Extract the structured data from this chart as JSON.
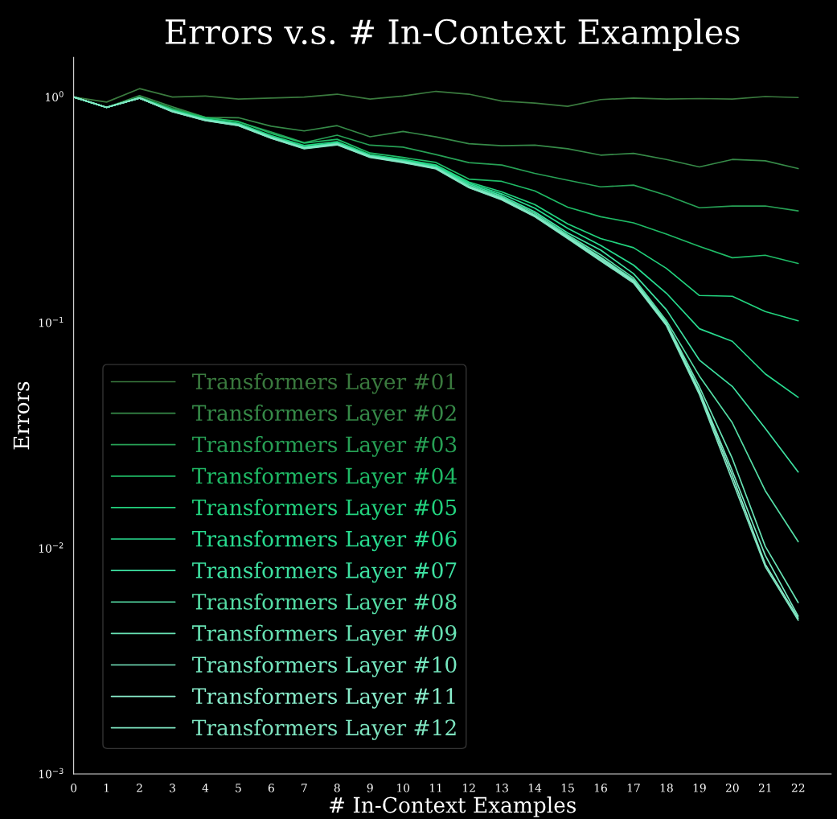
{
  "chart_data": {
    "type": "line",
    "title": "Errors v.s. # In-Context Examples",
    "xlabel": "# In-Context Examples",
    "ylabel": "Errors",
    "x": [
      0,
      1,
      2,
      3,
      4,
      5,
      6,
      7,
      8,
      9,
      10,
      11,
      12,
      13,
      14,
      15,
      16,
      17,
      18,
      19,
      20,
      21,
      22
    ],
    "xlim": [
      0,
      23
    ],
    "xticks": [
      0,
      1,
      2,
      3,
      4,
      5,
      6,
      7,
      8,
      9,
      10,
      11,
      12,
      13,
      14,
      15,
      16,
      17,
      18,
      19,
      20,
      21,
      22
    ],
    "log": "y",
    "ylim": [
      0.001,
      1.5
    ],
    "yticks": [
      {
        "value": 0.001,
        "label": "10$^{−3}$"
      },
      {
        "value": 0.01,
        "label": "10$^{−2}$"
      },
      {
        "value": 0.1,
        "label": "10$^{−1}$"
      },
      {
        "value": 1,
        "label": "10$^{0}$"
      }
    ],
    "grid": false,
    "legend": "bottom left",
    "marker": "none",
    "line_style": "solid",
    "series": [
      {
        "name": "Transformers Layer #01",
        "color": "#3a7a3e",
        "values": [
          1.0,
          0.95,
          1.09,
          1.0,
          1.01,
          0.98,
          0.99,
          1.0,
          1.03,
          0.98,
          1.01,
          1.06,
          1.03,
          0.96,
          0.94,
          0.91,
          0.975,
          0.99,
          0.98,
          0.985,
          0.98,
          1.005,
          0.995
        ]
      },
      {
        "name": "Transformers Layer #02",
        "color": "#368a48",
        "values": [
          1.0,
          0.9,
          1.015,
          0.905,
          0.813,
          0.81,
          0.743,
          0.708,
          0.747,
          0.667,
          0.704,
          0.666,
          0.621,
          0.609,
          0.612,
          0.59,
          0.553,
          0.563,
          0.529,
          0.49,
          0.529,
          0.522,
          0.482
        ]
      },
      {
        "name": "Transformers Layer #03",
        "color": "#27a055",
        "values": [
          1.0,
          0.9,
          1.0,
          0.89,
          0.813,
          0.776,
          0.7,
          0.628,
          0.678,
          0.612,
          0.6,
          0.556,
          0.512,
          0.5,
          0.459,
          0.428,
          0.4,
          0.407,
          0.367,
          0.323,
          0.329,
          0.329,
          0.313
        ]
      },
      {
        "name": "Transformers Layer #04",
        "color": "#1fbb66",
        "values": [
          1.0,
          0.9,
          0.995,
          0.88,
          0.81,
          0.78,
          0.69,
          0.625,
          0.65,
          0.565,
          0.54,
          0.513,
          0.433,
          0.423,
          0.384,
          0.325,
          0.295,
          0.277,
          0.247,
          0.218,
          0.194,
          0.199,
          0.183
        ]
      },
      {
        "name": "Transformers Layer #05",
        "color": "#22d37e",
        "values": [
          1.0,
          0.9,
          0.99,
          0.875,
          0.8,
          0.765,
          0.675,
          0.61,
          0.635,
          0.555,
          0.53,
          0.5,
          0.42,
          0.38,
          0.334,
          0.274,
          0.236,
          0.215,
          0.174,
          0.132,
          0.131,
          0.112,
          0.102
        ]
      },
      {
        "name": "Transformers Layer #06",
        "color": "#28dc90",
        "values": [
          1.0,
          0.9,
          0.99,
          0.872,
          0.798,
          0.76,
          0.668,
          0.602,
          0.628,
          0.552,
          0.525,
          0.495,
          0.415,
          0.372,
          0.322,
          0.262,
          0.22,
          0.18,
          0.135,
          0.094,
          0.0827,
          0.0593,
          0.0467
        ]
      },
      {
        "name": "Transformers Layer #07",
        "color": "#3ee2a2",
        "values": [
          1.0,
          0.9,
          0.99,
          0.87,
          0.796,
          0.757,
          0.666,
          0.6,
          0.625,
          0.55,
          0.522,
          0.49,
          0.41,
          0.365,
          0.31,
          0.25,
          0.21,
          0.165,
          0.114,
          0.0683,
          0.0522,
          0.034,
          0.0218
        ]
      },
      {
        "name": "Transformers Layer #08",
        "color": "#55dea6",
        "values": [
          1.0,
          0.9,
          0.99,
          0.868,
          0.794,
          0.755,
          0.664,
          0.598,
          0.622,
          0.548,
          0.52,
          0.488,
          0.405,
          0.36,
          0.305,
          0.245,
          0.2,
          0.158,
          0.102,
          0.058,
          0.036,
          0.018,
          0.0107
        ]
      },
      {
        "name": "Transformers Layer #09",
        "color": "#68e2b4",
        "values": [
          1.0,
          0.9,
          0.99,
          0.866,
          0.792,
          0.753,
          0.662,
          0.596,
          0.62,
          0.546,
          0.518,
          0.486,
          0.4,
          0.357,
          0.3,
          0.242,
          0.195,
          0.155,
          0.1,
          0.052,
          0.025,
          0.0102,
          0.00575
        ]
      },
      {
        "name": "Transformers Layer #10",
        "color": "#76e8c0",
        "values": [
          1.0,
          0.9,
          0.99,
          0.864,
          0.79,
          0.751,
          0.66,
          0.594,
          0.618,
          0.544,
          0.516,
          0.484,
          0.4,
          0.355,
          0.298,
          0.24,
          0.193,
          0.153,
          0.099,
          0.05,
          0.022,
          0.0093,
          0.005
        ]
      },
      {
        "name": "Transformers Layer #11",
        "color": "#8aeecc",
        "values": [
          1.0,
          0.9,
          0.99,
          0.862,
          0.788,
          0.749,
          0.658,
          0.592,
          0.616,
          0.542,
          0.514,
          0.482,
          0.398,
          0.352,
          0.296,
          0.238,
          0.19,
          0.152,
          0.098,
          0.049,
          0.021,
          0.0085,
          0.0049
        ]
      },
      {
        "name": "Transformers Layer #12",
        "color": "#7ee4c0",
        "values": [
          1.0,
          0.9,
          0.99,
          0.86,
          0.786,
          0.747,
          0.656,
          0.59,
          0.614,
          0.54,
          0.512,
          0.48,
          0.397,
          0.35,
          0.295,
          0.236,
          0.188,
          0.15,
          0.097,
          0.048,
          0.02,
          0.0083,
          0.0048
        ]
      }
    ]
  }
}
